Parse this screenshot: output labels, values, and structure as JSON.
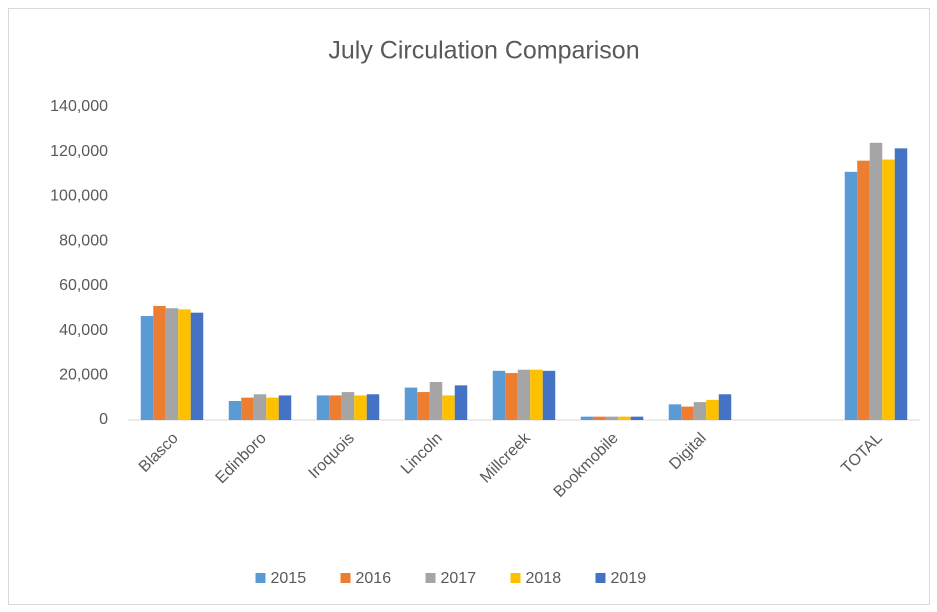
{
  "chart_data": {
    "type": "bar",
    "title": "July Circulation Comparison",
    "categories": [
      "Blasco",
      "Edinboro",
      "Iroquois",
      "Lincoln",
      "Millcreek",
      "Bookmobile",
      "Digital",
      null,
      "TOTAL"
    ],
    "series": [
      {
        "name": "2015",
        "color": "#5b9bd5",
        "values": [
          46500,
          8500,
          11000,
          14500,
          22000,
          1500,
          7000,
          null,
          111000
        ]
      },
      {
        "name": "2016",
        "color": "#ed7d31",
        "values": [
          51000,
          10000,
          11000,
          12500,
          21000,
          1500,
          6000,
          null,
          116000
        ]
      },
      {
        "name": "2017",
        "color": "#a5a5a5",
        "values": [
          50000,
          11500,
          12500,
          17000,
          22500,
          1500,
          8000,
          null,
          124000
        ]
      },
      {
        "name": "2018",
        "color": "#ffc000",
        "values": [
          49500,
          10000,
          11000,
          11000,
          22500,
          1500,
          9000,
          null,
          116500
        ]
      },
      {
        "name": "2019",
        "color": "#4472c4",
        "values": [
          48000,
          11000,
          11500,
          15500,
          22000,
          1500,
          11500,
          null,
          121500
        ]
      }
    ],
    "ylim": [
      0,
      140000
    ],
    "yticks": [
      0,
      {
        "value": 20000,
        "label": "20,000"
      },
      {
        "value": 40000,
        "label": "40,000"
      },
      {
        "value": 60000,
        "label": "60,000"
      },
      {
        "value": 80000,
        "label": "80,000"
      },
      {
        "value": 100000,
        "label": "100,000"
      },
      {
        "value": 120000,
        "label": "120,000"
      },
      {
        "value": 140000,
        "label": "140,000"
      }
    ],
    "grid": false,
    "legend": "bottom"
  }
}
